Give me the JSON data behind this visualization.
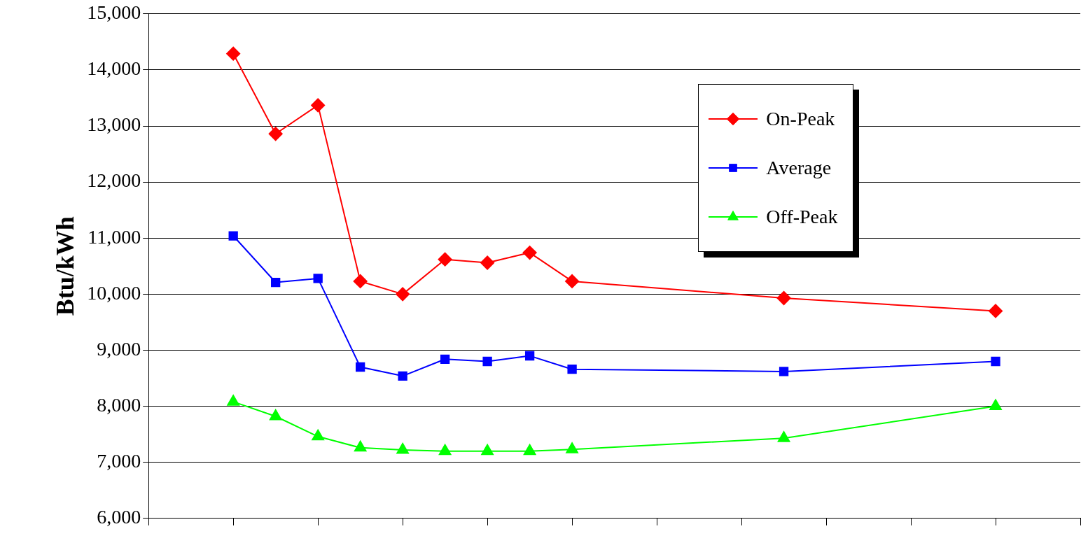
{
  "chart_data": {
    "type": "line",
    "ylabel": "Btu/kWh",
    "categories": [
      null,
      null,
      null,
      null,
      null,
      null,
      null,
      null,
      null,
      null,
      null,
      null,
      null,
      null,
      null,
      null,
      null,
      null,
      null
    ],
    "series": [
      {
        "name": "On-Peak",
        "color": "#ff0000",
        "marker": "diamond",
        "values": [
          14290,
          12860,
          13370,
          10230,
          10000,
          10620,
          10560,
          10740,
          10230,
          null,
          null,
          null,
          null,
          9930,
          null,
          null,
          null,
          null,
          9700
        ]
      },
      {
        "name": "Average",
        "color": "#0000ff",
        "marker": "square",
        "values": [
          11040,
          10210,
          10280,
          8700,
          8540,
          8840,
          8800,
          8900,
          8660,
          null,
          null,
          null,
          null,
          8620,
          null,
          null,
          null,
          null,
          8800
        ]
      },
      {
        "name": "Off-Peak",
        "color": "#00ff00",
        "marker": "triangle",
        "values": [
          8080,
          7820,
          7460,
          7260,
          7220,
          7200,
          7200,
          7200,
          7230,
          null,
          null,
          null,
          null,
          7430,
          null,
          null,
          null,
          null,
          8000
        ]
      }
    ],
    "ylim": [
      6000,
      15000
    ],
    "yticks": [
      {
        "value": 6000,
        "label": "6,000"
      },
      {
        "value": 7000,
        "label": "7,000"
      },
      {
        "value": 8000,
        "label": "8,000"
      },
      {
        "value": 9000,
        "label": "9,000"
      },
      {
        "value": 10000,
        "label": "10,000"
      },
      {
        "value": 11000,
        "label": "11,000"
      },
      {
        "value": 12000,
        "label": "12,000"
      },
      {
        "value": 13000,
        "label": "13,000"
      },
      {
        "value": 14000,
        "label": "14,000"
      },
      {
        "value": 15000,
        "label": "15,000"
      }
    ],
    "grid": "y",
    "legend": "top right",
    "line_style": "solid"
  }
}
